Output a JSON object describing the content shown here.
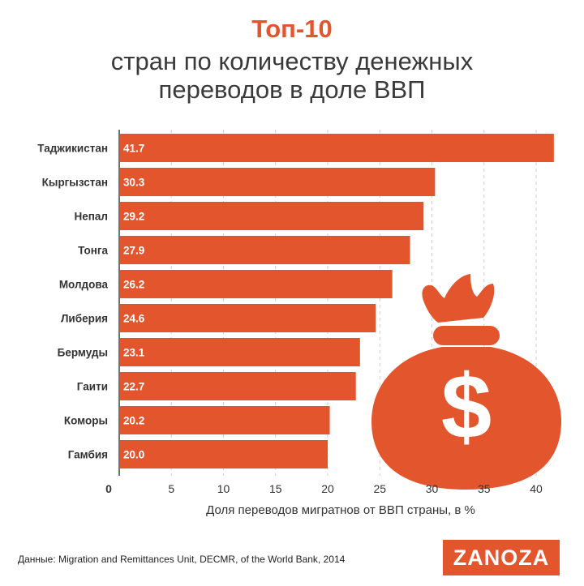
{
  "header": {
    "title": "Топ-10",
    "subtitle": "стран по количеству денежных переводов в доле ВВП"
  },
  "colors": {
    "accent": "#e2552d",
    "text": "#333333",
    "axis": "#555555"
  },
  "chart_data": {
    "type": "bar",
    "orientation": "horizontal",
    "categories": [
      "Таджикистан",
      "Кыргызстан",
      "Непал",
      "Тонга",
      "Молдова",
      "Либерия",
      "Бермуды",
      "Гаити",
      "Коморы",
      "Гамбия"
    ],
    "values": [
      41.7,
      30.3,
      29.2,
      27.9,
      26.2,
      24.6,
      23.1,
      22.7,
      20.2,
      20.0
    ],
    "value_labels": [
      "41.7",
      "30.3",
      "29.2",
      "27.9",
      "26.2",
      "24.6",
      "23.1",
      "22.7",
      "20.2",
      "20.0"
    ],
    "xticks": [
      0,
      5,
      10,
      15,
      20,
      25,
      30,
      35,
      40
    ],
    "xlim": [
      0,
      42
    ],
    "xlabel": "Доля переводов мигратнов от ВВП страны, в %",
    "ylabel": "",
    "grid": true,
    "legend": "none",
    "bar_color": "#e2552d"
  },
  "decoration": {
    "icon": "money-bag-dollar-icon"
  },
  "footer": {
    "source": "Данные:  Migration and Remittances Unit, DECMR, of the World Bank, 2014",
    "logo": "ZANOZA"
  }
}
